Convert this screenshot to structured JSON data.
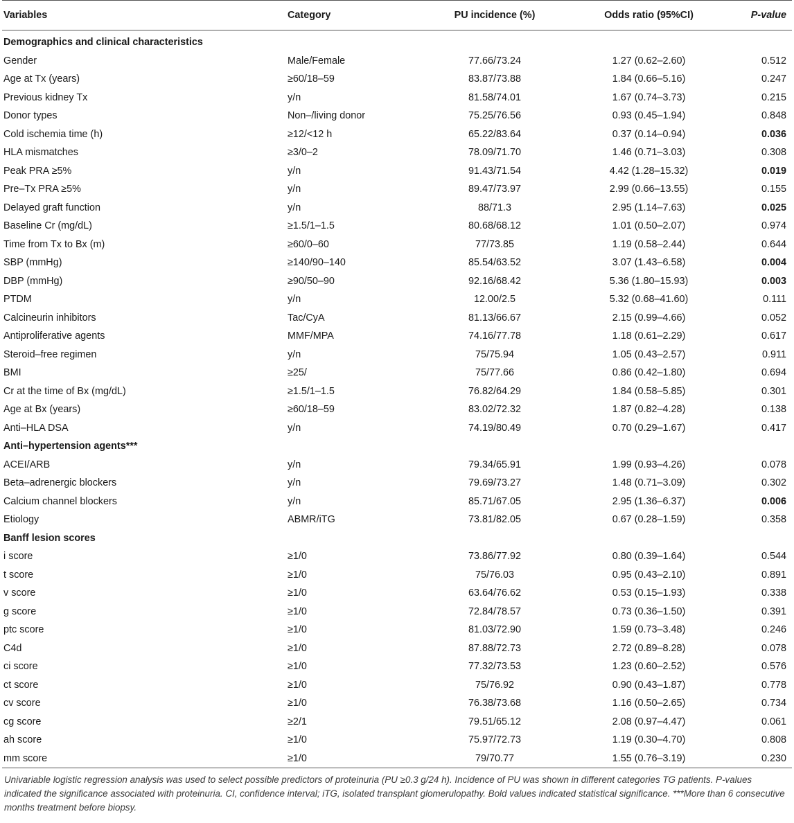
{
  "headers": {
    "variables": "Variables",
    "category": "Category",
    "incidence": "PU incidence (%)",
    "odds": "Odds ratio (95%CI)",
    "pvalue": "P-value"
  },
  "sections": [
    {
      "title": "Demographics and clinical characteristics",
      "rows": [
        {
          "variable": "Gender",
          "category": "Male/Female",
          "incidence": "77.66/73.24",
          "odds": "1.27 (0.62–2.60)",
          "p": "0.512",
          "bold": false
        },
        {
          "variable": "Age at Tx (years)",
          "category": "≥60/18–59",
          "incidence": "83.87/73.88",
          "odds": "1.84 (0.66–5.16)",
          "p": "0.247",
          "bold": false
        },
        {
          "variable": "Previous kidney Tx",
          "category": "y/n",
          "incidence": "81.58/74.01",
          "odds": "1.67 (0.74–3.73)",
          "p": "0.215",
          "bold": false
        },
        {
          "variable": "Donor types",
          "category": "Non–/living donor",
          "incidence": "75.25/76.56",
          "odds": "0.93 (0.45–1.94)",
          "p": "0.848",
          "bold": false
        },
        {
          "variable": "Cold ischemia time (h)",
          "category": "≥12/<12 h",
          "incidence": "65.22/83.64",
          "odds": "0.37 (0.14–0.94)",
          "p": "0.036",
          "bold": true
        },
        {
          "variable": "HLA mismatches",
          "category": "≥3/0–2",
          "incidence": "78.09/71.70",
          "odds": "1.46 (0.71–3.03)",
          "p": "0.308",
          "bold": false
        },
        {
          "variable": "Peak PRA ≥5%",
          "category": "y/n",
          "incidence": "91.43/71.54",
          "odds": "4.42 (1.28–15.32)",
          "p": "0.019",
          "bold": true
        },
        {
          "variable": "Pre–Tx PRA ≥5%",
          "category": "y/n",
          "incidence": "89.47/73.97",
          "odds": "2.99 (0.66–13.55)",
          "p": "0.155",
          "bold": false
        },
        {
          "variable": "Delayed graft function",
          "category": "y/n",
          "incidence": "88/71.3",
          "odds": "2.95 (1.14–7.63)",
          "p": "0.025",
          "bold": true
        },
        {
          "variable": "Baseline Cr (mg/dL)",
          "category": "≥1.5/1–1.5",
          "incidence": "80.68/68.12",
          "odds": "1.01 (0.50–2.07)",
          "p": "0.974",
          "bold": false
        },
        {
          "variable": "Time from Tx to Bx (m)",
          "category": "≥60/0–60",
          "incidence": "77/73.85",
          "odds": "1.19 (0.58–2.44)",
          "p": "0.644",
          "bold": false
        },
        {
          "variable": "SBP (mmHg)",
          "category": "≥140/90–140",
          "incidence": "85.54/63.52",
          "odds": "3.07 (1.43–6.58)",
          "p": "0.004",
          "bold": true
        },
        {
          "variable": "DBP (mmHg)",
          "category": "≥90/50–90",
          "incidence": "92.16/68.42",
          "odds": "5.36 (1.80–15.93)",
          "p": "0.003",
          "bold": true
        },
        {
          "variable": "PTDM",
          "category": "y/n",
          "incidence": "12.00/2.5",
          "odds": "5.32 (0.68–41.60)",
          "p": "0.111",
          "bold": false
        },
        {
          "variable": "Calcineurin inhibitors",
          "category": "Tac/CyA",
          "incidence": "81.13/66.67",
          "odds": "2.15 (0.99–4.66)",
          "p": "0.052",
          "bold": false
        },
        {
          "variable": "Antiproliferative agents",
          "category": "MMF/MPA",
          "incidence": "74.16/77.78",
          "odds": "1.18 (0.61–2.29)",
          "p": "0.617",
          "bold": false
        },
        {
          "variable": "Steroid–free regimen",
          "category": "y/n",
          "incidence": "75/75.94",
          "odds": "1.05 (0.43–2.57)",
          "p": "0.911",
          "bold": false
        },
        {
          "variable": "BMI",
          "category": "≥25/",
          "incidence": "75/77.66",
          "odds": "0.86 (0.42–1.80)",
          "p": "0.694",
          "bold": false
        },
        {
          "variable": "Cr at the time of Bx (mg/dL)",
          "category": "≥1.5/1–1.5",
          "incidence": "76.82/64.29",
          "odds": "1.84 (0.58–5.85)",
          "p": "0.301",
          "bold": false
        },
        {
          "variable": "Age at Bx (years)",
          "category": "≥60/18–59",
          "incidence": "83.02/72.32",
          "odds": "1.87 (0.82–4.28)",
          "p": "0.138",
          "bold": false
        },
        {
          "variable": "Anti–HLA DSA",
          "category": "y/n",
          "incidence": "74.19/80.49",
          "odds": "0.70 (0.29–1.67)",
          "p": "0.417",
          "bold": false
        }
      ]
    },
    {
      "title": "Anti–hypertension agents***",
      "rows": [
        {
          "variable": "ACEI/ARB",
          "category": "y/n",
          "incidence": "79.34/65.91",
          "odds": "1.99 (0.93–4.26)",
          "p": "0.078",
          "bold": false
        },
        {
          "variable": "Beta–adrenergic blockers",
          "category": "y/n",
          "incidence": "79.69/73.27",
          "odds": "1.48 (0.71–3.09)",
          "p": "0.302",
          "bold": false
        },
        {
          "variable": "Calcium channel blockers",
          "category": "y/n",
          "incidence": "85.71/67.05",
          "odds": "2.95 (1.36–6.37)",
          "p": "0.006",
          "bold": true
        },
        {
          "variable": "Etiology",
          "category": "ABMR/iTG",
          "incidence": "73.81/82.05",
          "odds": "0.67 (0.28–1.59)",
          "p": "0.358",
          "bold": false
        }
      ]
    },
    {
      "title": "Banff lesion scores",
      "rows": [
        {
          "variable": "i score",
          "category": "≥1/0",
          "incidence": "73.86/77.92",
          "odds": "0.80 (0.39–1.64)",
          "p": "0.544",
          "bold": false
        },
        {
          "variable": "t score",
          "category": "≥1/0",
          "incidence": "75/76.03",
          "odds": "0.95 (0.43–2.10)",
          "p": "0.891",
          "bold": false
        },
        {
          "variable": "v score",
          "category": "≥1/0",
          "incidence": "63.64/76.62",
          "odds": "0.53 (0.15–1.93)",
          "p": "0.338",
          "bold": false
        },
        {
          "variable": "g score",
          "category": "≥1/0",
          "incidence": "72.84/78.57",
          "odds": "0.73 (0.36–1.50)",
          "p": "0.391",
          "bold": false
        },
        {
          "variable": "ptc score",
          "category": "≥1/0",
          "incidence": "81.03/72.90",
          "odds": "1.59 (0.73–3.48)",
          "p": "0.246",
          "bold": false
        },
        {
          "variable": "C4d",
          "category": "≥1/0",
          "incidence": "87.88/72.73",
          "odds": "2.72 (0.89–8.28)",
          "p": "0.078",
          "bold": false
        },
        {
          "variable": "ci score",
          "category": "≥1/0",
          "incidence": "77.32/73.53",
          "odds": "1.23 (0.60–2.52)",
          "p": "0.576",
          "bold": false
        },
        {
          "variable": "ct score",
          "category": "≥1/0",
          "incidence": "75/76.92",
          "odds": "0.90 (0.43–1.87)",
          "p": "0.778",
          "bold": false
        },
        {
          "variable": "cv score",
          "category": "≥1/0",
          "incidence": "76.38/73.68",
          "odds": "1.16 (0.50–2.65)",
          "p": "0.734",
          "bold": false
        },
        {
          "variable": "cg score",
          "category": "≥2/1",
          "incidence": "79.51/65.12",
          "odds": "2.08 (0.97–4.47)",
          "p": "0.061",
          "bold": false
        },
        {
          "variable": "ah score",
          "category": "≥1/0",
          "incidence": "75.97/72.73",
          "odds": "1.19 (0.30–4.70)",
          "p": "0.808",
          "bold": false
        },
        {
          "variable": "mm score",
          "category": "≥1/0",
          "incidence": "79/70.77",
          "odds": "1.55 (0.76–3.19)",
          "p": "0.230",
          "bold": false
        }
      ]
    }
  ],
  "footnote": "Univariable logistic regression analysis was used to select possible predictors of proteinuria (PU ≥0.3 g/24 h). Incidence of PU was shown in different categories TG patients. P-values indicated the significance associated with proteinuria. CI, confidence interval; iTG, isolated transplant glomerulopathy. Bold values indicated statistical significance. ***More than 6 consecutive months treatment before biopsy."
}
